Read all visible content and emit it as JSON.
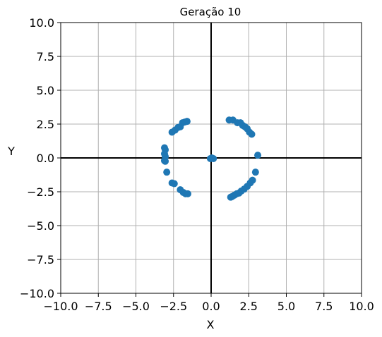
{
  "chart_data": {
    "type": "scatter",
    "title": "Geração 10",
    "xlabel": "X",
    "ylabel": "Y",
    "xlim": [
      -10,
      10
    ],
    "ylim": [
      -10,
      10
    ],
    "grid": true,
    "xticks": [
      -10,
      -7.5,
      -5,
      -2.5,
      0,
      2.5,
      5,
      7.5,
      10
    ],
    "yticks": [
      -10,
      -7.5,
      -5,
      -2.5,
      0,
      2.5,
      5,
      7.5,
      10
    ],
    "xtick_labels": [
      "−10.0",
      "−7.5",
      "−5.0",
      "−2.5",
      "0.0",
      "2.5",
      "5.0",
      "7.5",
      "10.0"
    ],
    "ytick_labels": [
      "−10.0",
      "−7.5",
      "−5.0",
      "−2.5",
      "0.0",
      "2.5",
      "5.0",
      "7.5",
      "10.0"
    ],
    "point_color": "#1f77b4",
    "points": [
      [
        -3.1,
        0.75
      ],
      [
        -3.05,
        0.6
      ],
      [
        -3.1,
        0.3
      ],
      [
        -3.05,
        0.1
      ],
      [
        -3.1,
        -0.2
      ],
      [
        -3.05,
        -0.25
      ],
      [
        -2.95,
        -1.05
      ],
      [
        -2.6,
        1.9
      ],
      [
        -2.4,
        2.05
      ],
      [
        -2.2,
        2.25
      ],
      [
        -2.05,
        2.3
      ],
      [
        -1.9,
        2.6
      ],
      [
        -1.75,
        2.65
      ],
      [
        -1.6,
        2.7
      ],
      [
        -2.6,
        -1.85
      ],
      [
        -2.45,
        -1.9
      ],
      [
        -2.05,
        -2.35
      ],
      [
        -1.85,
        -2.55
      ],
      [
        -1.7,
        -2.65
      ],
      [
        -1.55,
        -2.65
      ],
      [
        -0.05,
        -0.05
      ],
      [
        0.05,
        0.0
      ],
      [
        0.15,
        -0.05
      ],
      [
        1.2,
        2.8
      ],
      [
        1.45,
        2.8
      ],
      [
        1.75,
        2.6
      ],
      [
        1.95,
        2.6
      ],
      [
        2.1,
        2.4
      ],
      [
        2.25,
        2.3
      ],
      [
        2.4,
        2.15
      ],
      [
        2.55,
        1.9
      ],
      [
        2.7,
        1.75
      ],
      [
        3.1,
        0.2
      ],
      [
        2.95,
        -1.05
      ],
      [
        2.75,
        -1.65
      ],
      [
        2.6,
        -1.85
      ],
      [
        2.4,
        -2.1
      ],
      [
        2.2,
        -2.3
      ],
      [
        2.0,
        -2.45
      ],
      [
        1.85,
        -2.6
      ],
      [
        1.7,
        -2.65
      ],
      [
        1.55,
        -2.75
      ],
      [
        1.4,
        -2.85
      ],
      [
        1.3,
        -2.9
      ]
    ]
  }
}
